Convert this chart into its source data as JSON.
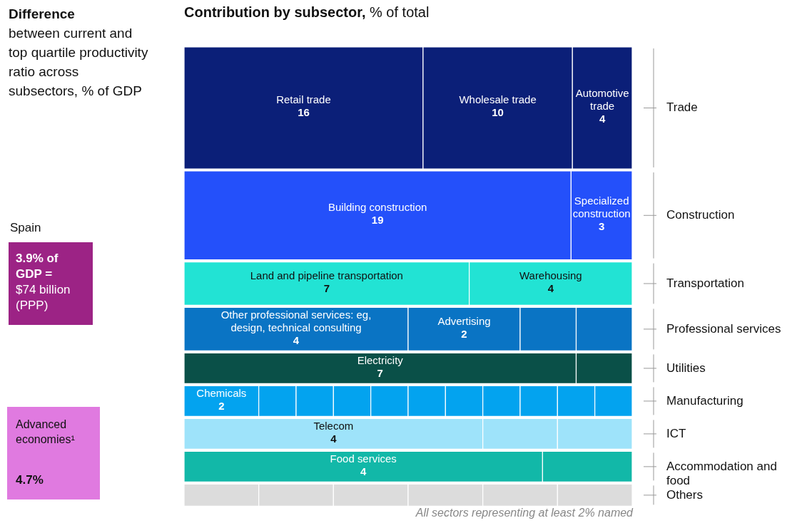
{
  "chart_data": {
    "type": "other",
    "title": "Contribution by subsector,",
    "subtitle": "% of total",
    "categories": [
      "Retail trade",
      "Wholesale trade",
      "Automotive trade",
      "Building construction",
      "Specialized construction",
      "Land and pipeline transportation",
      "Warehousing",
      "Other professional services: eg, design, technical consulting",
      "Advertising",
      null,
      null,
      "Electricity",
      null,
      "Chemicals",
      null,
      null,
      null,
      null,
      null,
      null,
      null,
      null,
      null,
      null,
      "Telecom",
      null,
      null,
      "Food services",
      null,
      null,
      null,
      null,
      null,
      null,
      null
    ],
    "values": [
      16,
      10,
      4,
      19,
      3,
      7,
      4,
      4,
      2,
      null,
      null,
      7,
      null,
      2,
      null,
      null,
      null,
      null,
      null,
      null,
      null,
      null,
      null,
      null,
      4,
      null,
      null,
      4,
      null,
      null,
      null,
      null,
      null,
      null,
      null
    ],
    "colors": [
      "#0b1f78",
      "#0b1f78",
      "#0b1f78",
      "#2450fa",
      "#2450fa",
      "#22e3d4",
      "#22e3d4",
      "#0a74c4",
      "#0a74c4",
      "#0a74c4",
      "#0a74c4",
      "#0a5048",
      "#0a5048",
      "#03a3ef",
      "#03a3ef",
      "#03a3ef",
      "#03a3ef",
      "#03a3ef",
      "#03a3ef",
      "#03a3ef",
      "#03a3ef",
      "#03a3ef",
      "#03a3ef",
      "#03a3ef",
      "#9ee3fa",
      "#9ee3fa",
      "#9ee3fa",
      "#12b8a8",
      "#12b8a8",
      "#dcdcdc",
      "#dcdcdc",
      "#dcdcdc",
      "#dcdcdc",
      "#dcdcdc",
      "#dcdcdc"
    ],
    "y2_categories": [
      "Trade",
      "Construction",
      "Transportation",
      "Professional services",
      "Utilities",
      "Manufacturing",
      "ICT",
      "Accommodation and food",
      "Others"
    ],
    "data_labels": true,
    "annotations": [
      "Difference",
      "between current and top quartile productivity ratio across subsectors, % of GDP",
      "Spain",
      "3.9% of GDP =",
      "$74 billion (PPP)",
      "Advanced economies¹",
      "4.7%",
      "All sectors representing at least 2% named"
    ]
  }
}
